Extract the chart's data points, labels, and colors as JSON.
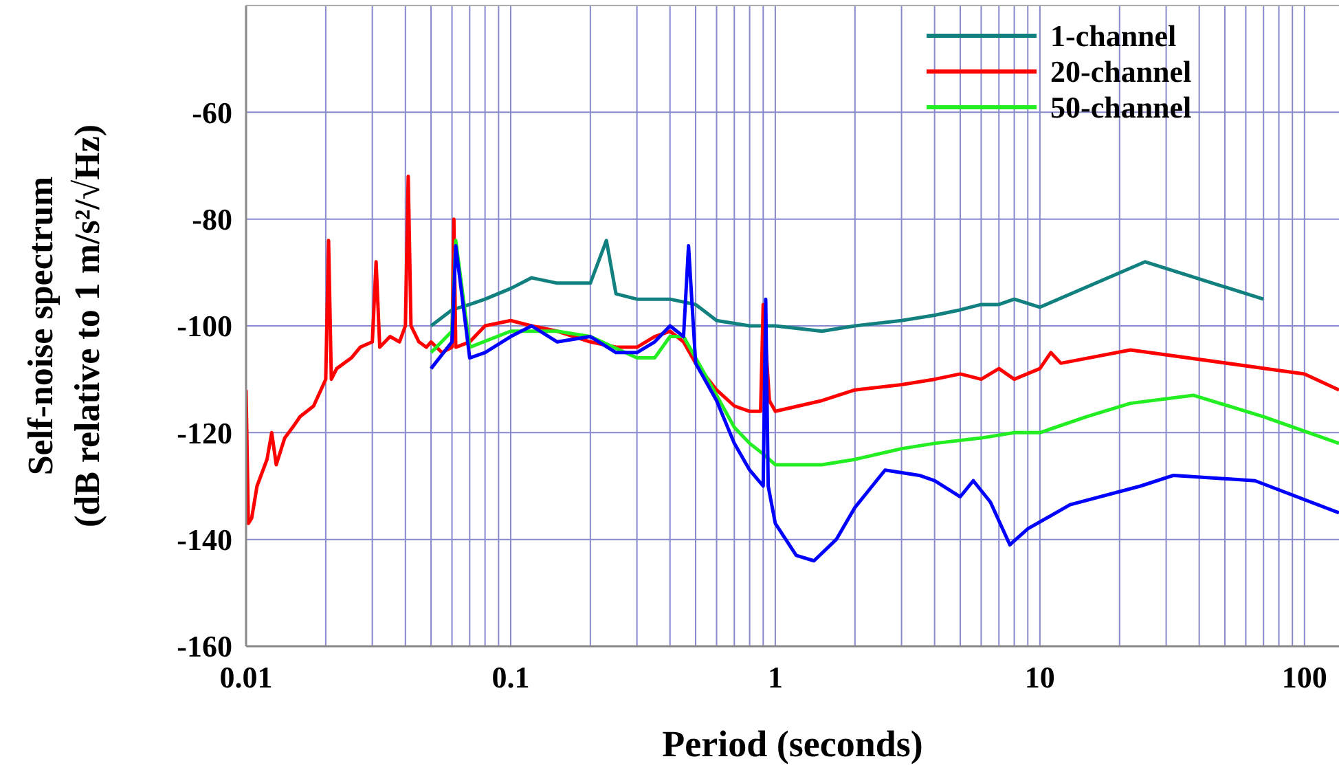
{
  "chart_data": {
    "type": "line",
    "xlabel": "Period (seconds)",
    "ylabel": "Self-noise spectrum\n(dB relative to 1 m/s²/√Hz)",
    "log": "x",
    "grid": true,
    "legend": "top right",
    "xlim": [
      0.01,
      135
    ],
    "ylim": [
      -160,
      -40
    ],
    "xticks": [
      0.01,
      {
        "value": 0.02,
        "label": null
      },
      {
        "value": 0.03,
        "label": null
      },
      {
        "value": 0.04,
        "label": null
      },
      {
        "value": 0.05,
        "label": null
      },
      {
        "value": 0.06,
        "label": null
      },
      {
        "value": 0.07,
        "label": null
      },
      {
        "value": 0.08,
        "label": null
      },
      {
        "value": 0.09,
        "label": null
      },
      0.1,
      {
        "value": 0.2,
        "label": null
      },
      {
        "value": 0.3,
        "label": null
      },
      {
        "value": 0.4,
        "label": null
      },
      {
        "value": 0.5,
        "label": null
      },
      {
        "value": 0.6,
        "label": null
      },
      {
        "value": 0.7,
        "label": null
      },
      {
        "value": 0.8,
        "label": null
      },
      {
        "value": 0.9,
        "label": null
      },
      1,
      {
        "value": 2,
        "label": null
      },
      {
        "value": 3,
        "label": null
      },
      {
        "value": 4,
        "label": null
      },
      {
        "value": 5,
        "label": null
      },
      {
        "value": 6,
        "label": null
      },
      {
        "value": 7,
        "label": null
      },
      {
        "value": 8,
        "label": null
      },
      {
        "value": 9,
        "label": null
      },
      10,
      {
        "value": 20,
        "label": null
      },
      {
        "value": 30,
        "label": null
      },
      {
        "value": 40,
        "label": null
      },
      {
        "value": 50,
        "label": null
      },
      {
        "value": 60,
        "label": null
      },
      {
        "value": 70,
        "label": null
      },
      {
        "value": 80,
        "label": null
      },
      {
        "value": 90,
        "label": null
      },
      100
    ],
    "yticks": [
      -160,
      -140,
      -120,
      -100,
      -80,
      -60
    ],
    "series": [
      {
        "name": "1-channel",
        "color": "#138080",
        "x": [
          0.05,
          0.06,
          0.07,
          0.08,
          0.1,
          0.12,
          0.15,
          0.2,
          0.23,
          0.25,
          0.3,
          0.4,
          0.5,
          0.6,
          0.8,
          1,
          1.5,
          2,
          3,
          4,
          5,
          6,
          7,
          8,
          10,
          25,
          70
        ],
        "values": [
          -100,
          -97,
          -96,
          -95,
          -93,
          -91,
          -92,
          -92,
          -84,
          -94,
          -95,
          -95,
          -96,
          -99,
          -100,
          -100,
          -101,
          -100,
          -99,
          -98,
          -97,
          -96,
          -96,
          -95,
          -96.5,
          -88,
          -95
        ]
      },
      {
        "name": "20-channel",
        "color": "#ff0000",
        "x": [
          0.01,
          0.0102,
          0.0105,
          0.011,
          0.012,
          0.0125,
          0.013,
          0.014,
          0.015,
          0.016,
          0.018,
          0.02,
          0.0205,
          0.021,
          0.022,
          0.025,
          0.027,
          0.03,
          0.031,
          0.032,
          0.035,
          0.038,
          0.04,
          0.041,
          0.042,
          0.045,
          0.048,
          0.05,
          0.055,
          0.06,
          0.061,
          0.062,
          0.07,
          0.08,
          0.1,
          0.12,
          0.15,
          0.2,
          0.25,
          0.3,
          0.35,
          0.4,
          0.45,
          0.5,
          0.6,
          0.7,
          0.8,
          0.88,
          0.9,
          0.95,
          1,
          1.5,
          2,
          3,
          4,
          5,
          6,
          7,
          8,
          10,
          11,
          12,
          22,
          100,
          135
        ],
        "values": [
          -112,
          -137,
          -136,
          -130,
          -125,
          -120,
          -126,
          -121,
          -119,
          -117,
          -115,
          -110,
          -84,
          -110,
          -108,
          -106,
          -104,
          -103,
          -88,
          -104,
          -102,
          -103,
          -100,
          -72,
          -100,
          -103,
          -104,
          -103,
          -105,
          -104,
          -80,
          -104,
          -103,
          -100,
          -99,
          -100,
          -101,
          -103,
          -104,
          -104,
          -102,
          -101,
          -103,
          -107,
          -112,
          -115,
          -116,
          -116,
          -96,
          -114,
          -116,
          -114,
          -112,
          -111,
          -110,
          -109,
          -110,
          -108,
          -110,
          -108,
          -105,
          -107,
          -104.5,
          -109,
          -112
        ]
      },
      {
        "name": "50-channel",
        "color": "#22ee22",
        "x": [
          0.05,
          0.06,
          0.062,
          0.07,
          0.1,
          0.15,
          0.2,
          0.3,
          0.35,
          0.4,
          0.45,
          0.5,
          0.6,
          0.7,
          0.8,
          0.9,
          1,
          1.5,
          2,
          3,
          4,
          6,
          8,
          10,
          15,
          22,
          38,
          70,
          135
        ],
        "values": [
          -105,
          -101,
          -84,
          -104,
          -101,
          -101,
          -102,
          -106,
          -106,
          -102,
          -102,
          -106,
          -113,
          -119,
          -122,
          -124,
          -126,
          -126,
          -125,
          -123,
          -122,
          -121,
          -120,
          -120,
          -117,
          -114.5,
          -113,
          -117,
          -122
        ]
      },
      {
        "color": "#0000ff",
        "x": [
          0.05,
          0.06,
          0.062,
          0.07,
          0.08,
          0.1,
          0.12,
          0.15,
          0.2,
          0.25,
          0.3,
          0.35,
          0.4,
          0.45,
          0.47,
          0.5,
          0.6,
          0.7,
          0.8,
          0.9,
          0.92,
          0.94,
          1,
          1.2,
          1.4,
          1.7,
          2,
          2.6,
          3.5,
          4,
          5,
          5.6,
          6.5,
          7.7,
          9,
          13,
          24,
          32,
          65,
          135
        ],
        "values": [
          -108,
          -103,
          -85,
          -106,
          -105,
          -102,
          -100,
          -103,
          -102,
          -105,
          -105,
          -103,
          -100,
          -102,
          -85,
          -107,
          -114,
          -122,
          -127,
          -130,
          -95,
          -130,
          -137,
          -143,
          -144,
          -140,
          -134,
          -127,
          -128,
          -129,
          -132,
          -129,
          -133,
          -141,
          -138,
          -133.5,
          -130,
          -128,
          -129,
          -135
        ]
      }
    ]
  }
}
